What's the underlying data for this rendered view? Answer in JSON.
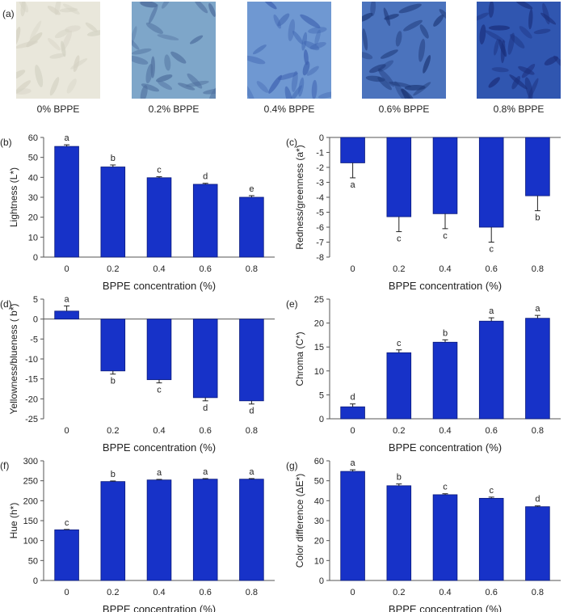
{
  "figure": {
    "panel_a": {
      "letter": "(a)",
      "photos": [
        {
          "label": "0% BPPE",
          "color": "#e9e7db",
          "shade": "#d4d2c3"
        },
        {
          "label": "0.2% BPPE",
          "color": "#7ea6c9",
          "shade": "#4f6f9e"
        },
        {
          "label": "0.4% BPPE",
          "color": "#6f98d2",
          "shade": "#3e63b0"
        },
        {
          "label": "0.6% BPPE",
          "color": "#4b73bd",
          "shade": "#1f3a7a"
        },
        {
          "label": "0.8% BPPE",
          "color": "#3056b0",
          "shade": "#1b2f7c"
        }
      ]
    }
  },
  "colors": {
    "bar": "#1732c8",
    "bar_edge": "#0b1a7a",
    "axis": "#555555"
  },
  "chart_data": [
    {
      "type": "bar",
      "letter": "(b)",
      "categories": [
        "0",
        "0.2",
        "0.4",
        "0.6",
        "0.8"
      ],
      "values": [
        55.5,
        45.2,
        39.8,
        36.5,
        30.0
      ],
      "errors": [
        0.8,
        1.0,
        0.5,
        0.5,
        0.8
      ],
      "letters": [
        "a",
        "b",
        "c",
        "d",
        "e"
      ],
      "ylabel": "Lightness (L*)",
      "xlabel": "BPPE concentration (%)",
      "ylim": [
        0,
        60
      ],
      "yticks": [
        "0",
        "10",
        "20",
        "30",
        "40",
        "50",
        "60"
      ]
    },
    {
      "type": "bar",
      "letter": "(c)",
      "categories": [
        "0",
        "0.2",
        "0.4",
        "0.6",
        "0.8"
      ],
      "values": [
        -1.7,
        -5.3,
        -5.1,
        -6.0,
        -3.9
      ],
      "errors": [
        1.0,
        1.0,
        1.0,
        1.0,
        1.0
      ],
      "letters": [
        "a",
        "c",
        "c",
        "c",
        "b"
      ],
      "ylabel": "Redness/greenness (a*)",
      "xlabel": "BPPE concentration (%)",
      "ylim": [
        -8,
        0
      ],
      "yticks": [
        "-8",
        "-7",
        "-6",
        "-5",
        "-4",
        "-3",
        "-2",
        "-1",
        "0"
      ]
    },
    {
      "type": "bar",
      "letter": "(d)",
      "categories": [
        "0",
        "0.2",
        "0.4",
        "0.6",
        "0.8"
      ],
      "values": [
        2.0,
        -13.0,
        -15.2,
        -19.7,
        -20.5
      ],
      "errors": [
        1.3,
        0.8,
        0.8,
        0.8,
        0.8
      ],
      "letters": [
        "a",
        "b",
        "c",
        "d",
        "d"
      ],
      "ylabel": "Yellowness/blueness ( b*)",
      "xlabel": "BPPE concentration (%)",
      "ylim": [
        -25,
        5
      ],
      "yticks": [
        "-25",
        "-20",
        "-15",
        "-10",
        "-5",
        "0",
        "5"
      ]
    },
    {
      "type": "bar",
      "letter": "(e)",
      "categories": [
        "0",
        "0.2",
        "0.4",
        "0.6",
        "0.8"
      ],
      "values": [
        2.5,
        13.8,
        16.0,
        20.4,
        21.0
      ],
      "errors": [
        0.6,
        0.6,
        0.5,
        0.7,
        0.6
      ],
      "letters": [
        "d",
        "c",
        "b",
        "a",
        "a"
      ],
      "ylabel": "Chroma (C*)",
      "xlabel": "BPPE concentration (%)",
      "ylim": [
        0,
        25
      ],
      "yticks": [
        "0",
        "5",
        "10",
        "15",
        "20",
        "25"
      ]
    },
    {
      "type": "bar",
      "letter": "(f)",
      "categories": [
        "0",
        "0.2",
        "0.4",
        "0.6",
        "0.8"
      ],
      "values": [
        127,
        248,
        252,
        254,
        254
      ],
      "errors": [
        1,
        1.5,
        1.5,
        1.5,
        1.5
      ],
      "letters": [
        "c",
        "b",
        "a",
        "a",
        "a"
      ],
      "ylabel": "Hue (h*)",
      "xlabel": "BPPE concentration (%)",
      "ylim": [
        0,
        300
      ],
      "yticks": [
        "0",
        "50",
        "100",
        "150",
        "200",
        "250",
        "300"
      ]
    },
    {
      "type": "bar",
      "letter": "(g)",
      "categories": [
        "0",
        "0.2",
        "0.4",
        "0.6",
        "0.8"
      ],
      "values": [
        54.7,
        47.5,
        43.0,
        41.2,
        37.0
      ],
      "errors": [
        0.8,
        0.9,
        0.5,
        0.6,
        0.4
      ],
      "letters": [
        "a",
        "b",
        "c",
        "c",
        "d"
      ],
      "ylabel": "Color difference (ΔE*)",
      "xlabel": "BPPE concentration (%)",
      "ylim": [
        0,
        60
      ],
      "yticks": [
        "0",
        "10",
        "20",
        "30",
        "40",
        "50",
        "60"
      ]
    }
  ]
}
